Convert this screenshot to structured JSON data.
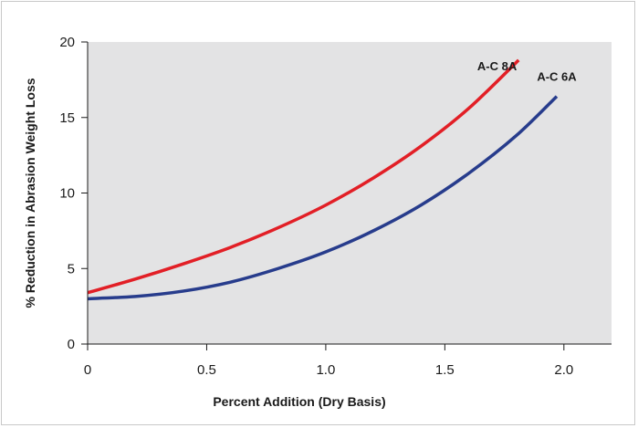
{
  "chart_data": {
    "type": "line",
    "xlabel": "Percent Addition (Dry Basis)",
    "ylabel": "% Reduction in Abrasion Weight Loss",
    "xlim": [
      0,
      2.2
    ],
    "ylim": [
      0,
      20
    ],
    "x_ticks": [
      "0",
      "0.5",
      "1.0",
      "1.5",
      "2.0"
    ],
    "y_ticks": [
      "0",
      "5",
      "10",
      "15",
      "20"
    ],
    "grid": false,
    "background_color": "#e3e3e4",
    "series": [
      {
        "name": "A-C 8A",
        "color": "#e21f26",
        "x": [
          0,
          0.2,
          0.4,
          0.6,
          0.8,
          1.0,
          1.2,
          1.4,
          1.6,
          1.81
        ],
        "y": [
          3.4,
          4.3,
          5.3,
          6.4,
          7.7,
          9.2,
          11.0,
          13.1,
          15.6,
          18.8
        ]
      },
      {
        "name": "A-C 6A",
        "color": "#273c8c",
        "x": [
          0,
          0.2,
          0.4,
          0.6,
          0.8,
          1.0,
          1.2,
          1.4,
          1.6,
          1.8,
          1.97
        ],
        "y": [
          3.0,
          3.15,
          3.5,
          4.1,
          5.0,
          6.1,
          7.5,
          9.2,
          11.3,
          13.8,
          16.4
        ]
      }
    ]
  }
}
